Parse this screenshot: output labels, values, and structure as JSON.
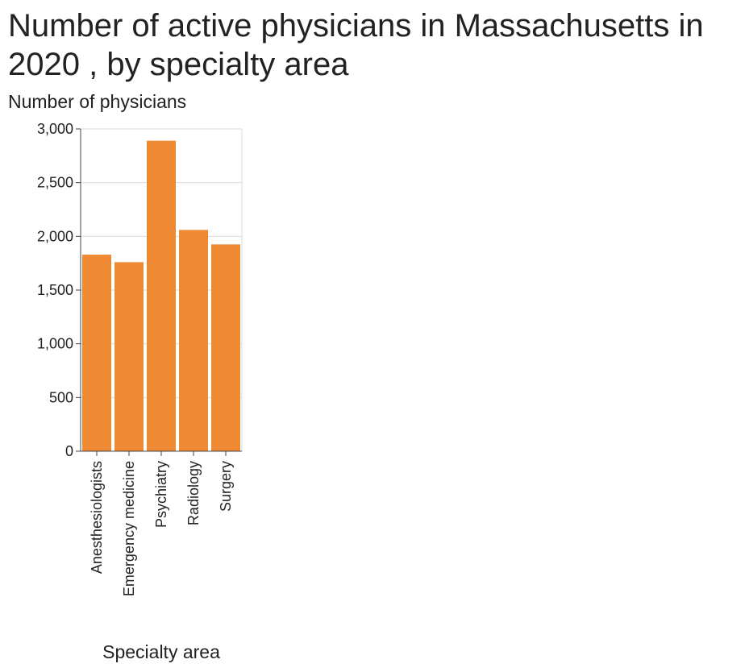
{
  "chart_data": {
    "type": "bar",
    "title": "Number of active physicians in Massachusetts in 2020 , by specialty area",
    "xlabel": "Specialty area",
    "ylabel": "Number of physicians",
    "categories": [
      "Anesthesiologists",
      "Emergency medicine",
      "Psychiatry",
      "Radiology",
      "Surgery"
    ],
    "values": [
      1830,
      1760,
      2890,
      2060,
      1925
    ],
    "ylim": [
      0,
      3000
    ],
    "yticks": [
      0,
      500,
      1000,
      1500,
      2000,
      2500,
      3000
    ],
    "ytick_labels": [
      "0",
      "500",
      "1,000",
      "1,500",
      "2,000",
      "2,500",
      "3,000"
    ],
    "grid": true,
    "bar_color": "#ee8a34"
  }
}
